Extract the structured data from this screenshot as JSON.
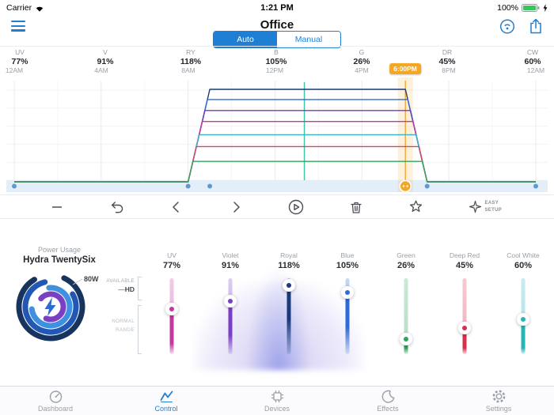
{
  "status_bar": {
    "carrier": "Carrier",
    "time": "1:21 PM",
    "battery_percent": "100%"
  },
  "header": {
    "title": "Office",
    "mode_toggle": {
      "options": [
        "Auto",
        "Manual"
      ],
      "selected": "Auto"
    }
  },
  "channels": [
    {
      "label": "UV",
      "value": "77%"
    },
    {
      "label": "V",
      "value": "91%"
    },
    {
      "label": "RY",
      "value": "118%"
    },
    {
      "label": "B",
      "value": "105%"
    },
    {
      "label": "G",
      "value": "26%"
    },
    {
      "label": "DR",
      "value": "45%"
    },
    {
      "label": "CW",
      "value": "60%"
    }
  ],
  "timeline": {
    "ticks": [
      {
        "label": "12AM",
        "hour": 0
      },
      {
        "label": "4AM",
        "hour": 4
      },
      {
        "label": "8AM",
        "hour": 8
      },
      {
        "label": "12PM",
        "hour": 12
      },
      {
        "label": "4PM",
        "hour": 16
      },
      {
        "label": "8PM",
        "hour": 20
      },
      {
        "label": "12AM",
        "hour": 24
      }
    ],
    "selected_time_label": "6:00PM",
    "selected_hour": 18,
    "current_hour": 13.35
  },
  "chart_data": {
    "type": "line",
    "x_unit": "hour",
    "xlim": [
      0,
      24
    ],
    "ylim": [
      0,
      130
    ],
    "grid": true,
    "series": [
      {
        "name": "Royal",
        "peak_percent": 118,
        "color": "#1b3a7a",
        "points": [
          [
            0,
            0
          ],
          [
            8,
            0
          ],
          [
            9,
            118
          ],
          [
            18,
            118
          ],
          [
            19,
            0
          ],
          [
            24,
            0
          ]
        ]
      },
      {
        "name": "Blue",
        "peak_percent": 105,
        "color": "#2e6bd6",
        "points": [
          [
            0,
            0
          ],
          [
            8,
            0
          ],
          [
            8.89,
            105
          ],
          [
            18.11,
            105
          ],
          [
            19,
            0
          ],
          [
            24,
            0
          ]
        ]
      },
      {
        "name": "Violet",
        "peak_percent": 91,
        "color": "#6f3bbf",
        "points": [
          [
            0,
            0
          ],
          [
            8,
            0
          ],
          [
            8.77,
            91
          ],
          [
            18.23,
            91
          ],
          [
            19,
            0
          ],
          [
            24,
            0
          ]
        ]
      },
      {
        "name": "UV",
        "peak_percent": 77,
        "color": "#c2399f",
        "points": [
          [
            0,
            0
          ],
          [
            8,
            0
          ],
          [
            8.65,
            77
          ],
          [
            18.35,
            77
          ],
          [
            19,
            0
          ],
          [
            24,
            0
          ]
        ]
      },
      {
        "name": "Cool White",
        "peak_percent": 60,
        "color": "#3db6c9",
        "points": [
          [
            0,
            0
          ],
          [
            8,
            0
          ],
          [
            8.51,
            60
          ],
          [
            18.49,
            60
          ],
          [
            19,
            0
          ],
          [
            24,
            0
          ]
        ]
      },
      {
        "name": "Deep Red",
        "peak_percent": 45,
        "color": "#d8455f",
        "points": [
          [
            0,
            0
          ],
          [
            8,
            0
          ],
          [
            8.38,
            45
          ],
          [
            18.62,
            45
          ],
          [
            19,
            0
          ],
          [
            24,
            0
          ]
        ]
      },
      {
        "name": "Green",
        "peak_percent": 26,
        "color": "#35a45c",
        "points": [
          [
            0,
            0
          ],
          [
            8,
            0
          ],
          [
            8.22,
            26
          ],
          [
            18.78,
            26
          ],
          [
            19,
            0
          ],
          [
            24,
            0
          ]
        ]
      }
    ],
    "keyframe_hours": [
      0,
      8,
      9,
      19,
      24
    ],
    "selected_keyframe_hour": 18
  },
  "toolbar": {
    "easy_setup_label": "EASY SETUP"
  },
  "power": {
    "section_title": "Power Usage",
    "device_name": "Hydra TwentySix",
    "wattage": "80W",
    "available_label": "AVAILABLE",
    "hd_label": "HD",
    "normal_range_label": "NORMAL RANGE"
  },
  "sliders": [
    {
      "label": "UV",
      "value": "77%",
      "percent": 77,
      "color": "#c2399f"
    },
    {
      "label": "Violet",
      "value": "91%",
      "percent": 91,
      "color": "#7b3fc4"
    },
    {
      "label": "Royal",
      "value": "118%",
      "percent": 118,
      "color": "#1b3a7a"
    },
    {
      "label": "Blue",
      "value": "105%",
      "percent": 105,
      "color": "#2e6bd6"
    },
    {
      "label": "Green",
      "value": "26%",
      "percent": 26,
      "color": "#2fa45c"
    },
    {
      "label": "Deep Red",
      "value": "45%",
      "percent": 45,
      "color": "#d8304a"
    },
    {
      "label": "Cool White",
      "value": "60%",
      "percent": 60,
      "color": "#29b5b8"
    }
  ],
  "slider_scale_max": 130,
  "tab_bar": [
    {
      "label": "Dashboard",
      "active": false
    },
    {
      "label": "Control",
      "active": true
    },
    {
      "label": "Devices",
      "active": false
    },
    {
      "label": "Effects",
      "active": false
    },
    {
      "label": "Settings",
      "active": false
    }
  ],
  "colors": {
    "accent": "#1f7fd4",
    "selection_orange": "#f5a623",
    "current_time_teal": "#41c3a9",
    "keyframe_dot": "#5b9bd5"
  }
}
